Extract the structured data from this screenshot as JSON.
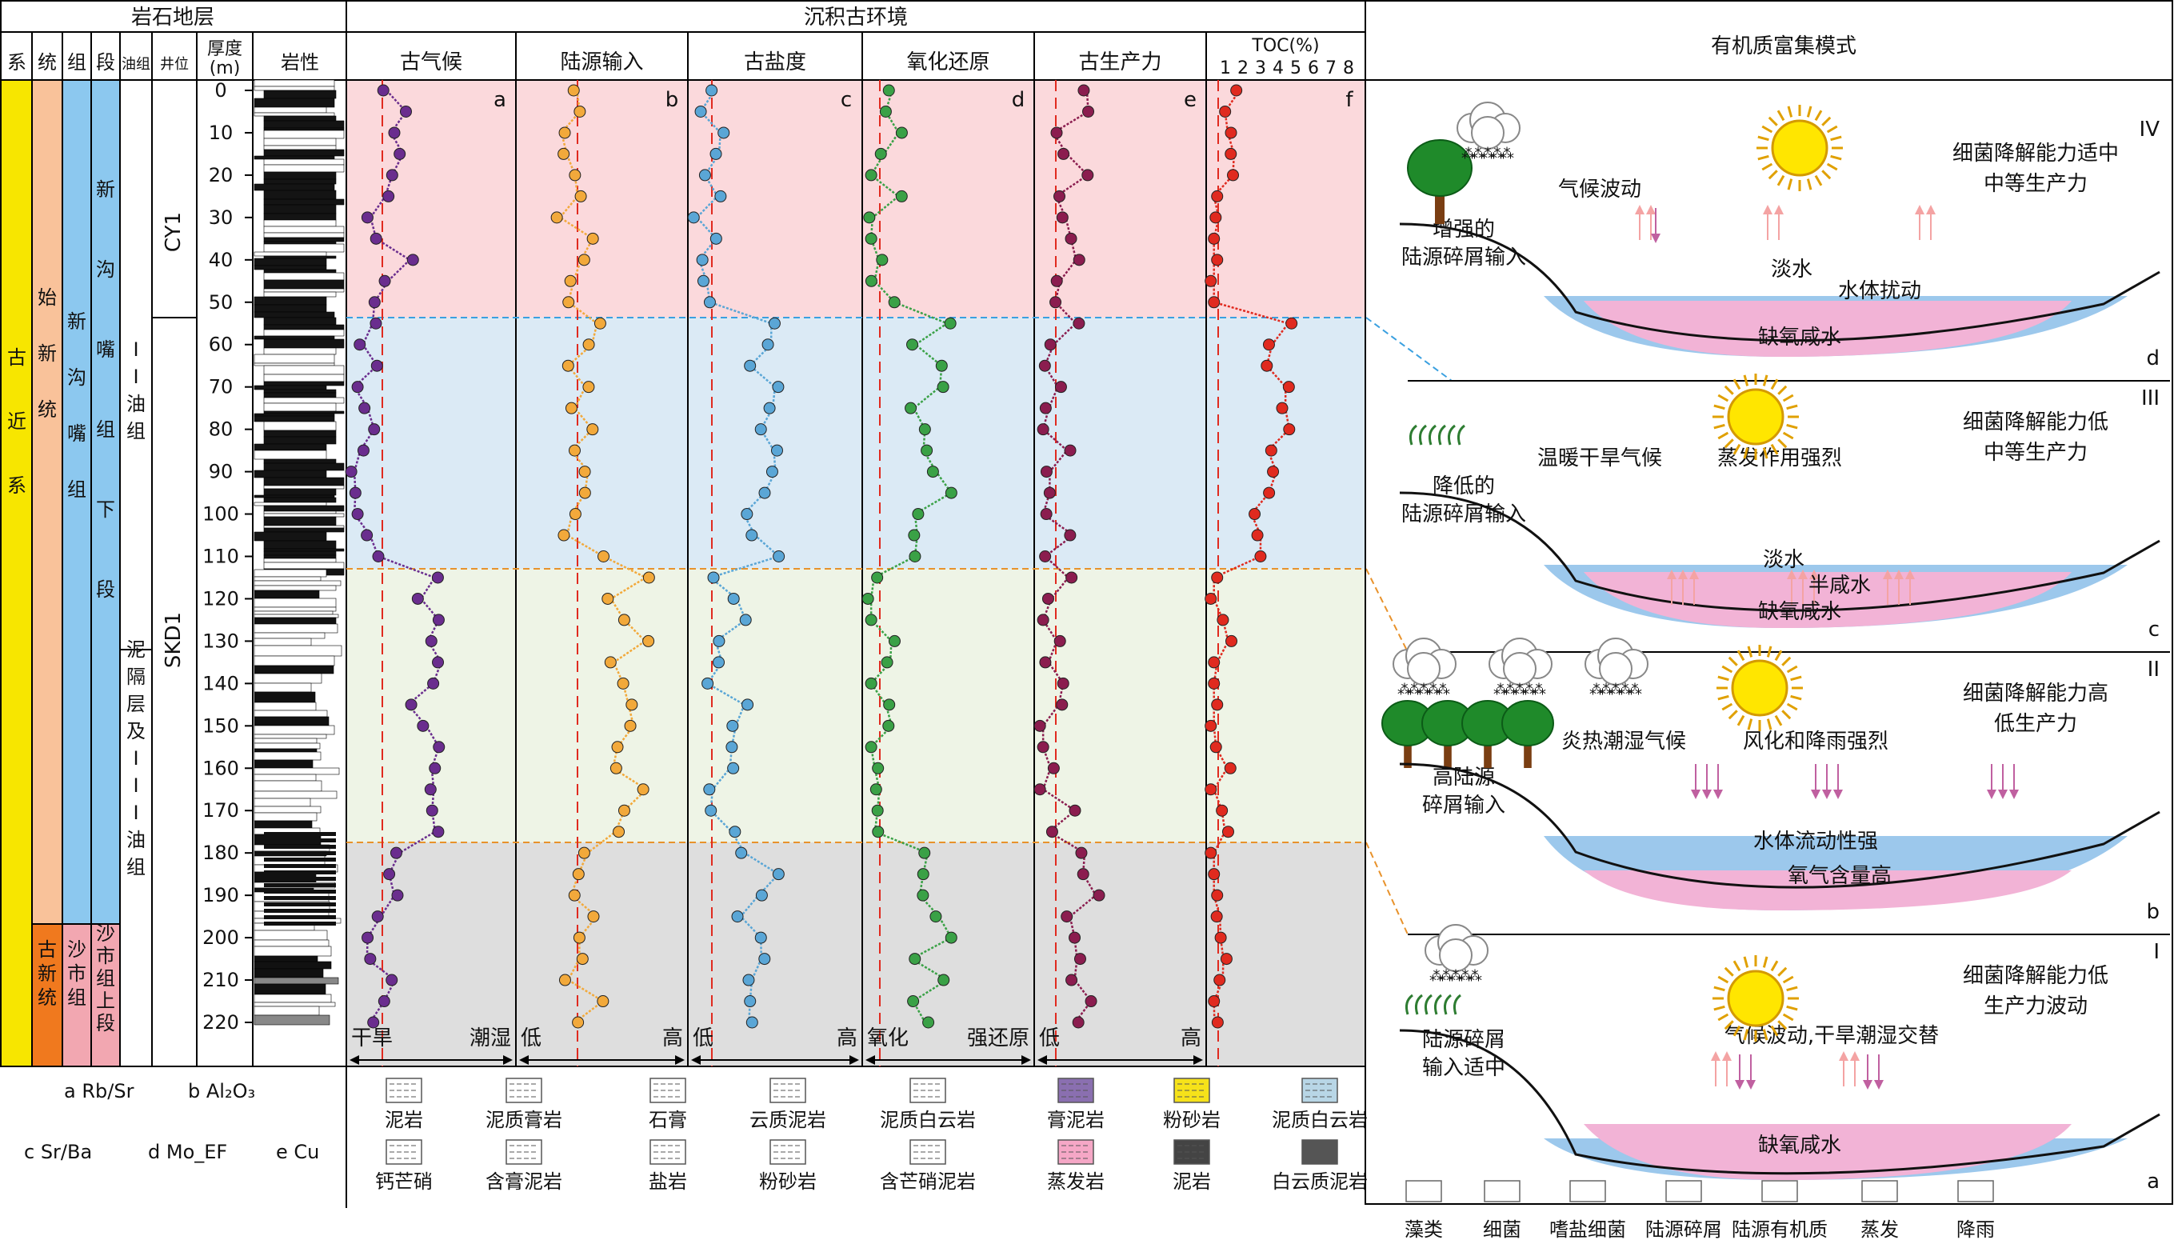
{
  "headers": {
    "strata": "岩石地层",
    "env": "沉积古环境",
    "model": "有机质富集模式",
    "cols": [
      "系",
      "统",
      "组",
      "段",
      "油组",
      "井位",
      "厚度\n(m)",
      "岩性"
    ],
    "panels": [
      "古气候",
      "陆源输入",
      "古盐度",
      "氧化还原",
      "古生产力",
      "TOC(%)"
    ],
    "toc_ticks": [
      "1",
      "2",
      "3",
      "4",
      "5",
      "6",
      "7",
      "8"
    ],
    "panel_letters": [
      "a",
      "b",
      "c",
      "d",
      "e",
      "f"
    ]
  },
  "strata": {
    "system": "古近系",
    "series_upper": "始新统",
    "series_lower": "古新统",
    "formation_upper": "新沟嘴组",
    "formation_lower": "沙市组",
    "member_upper": "新沟嘴组下段",
    "member_lower": "沙市组上段",
    "oil_group_upper": "II油组",
    "oil_group_lower": "泥隔层及III油组",
    "well_upper": "CY1",
    "well_lower": "SKD1"
  },
  "depth_ticks": [
    0,
    10,
    20,
    30,
    40,
    50,
    60,
    70,
    80,
    90,
    100,
    110,
    120,
    130,
    140,
    150,
    160,
    170,
    180,
    190,
    200,
    210,
    220
  ],
  "axis_ends": [
    [
      "干旱",
      "潮湿"
    ],
    [
      "低",
      "高"
    ],
    [
      "低",
      "高"
    ],
    [
      "氧化",
      "强还原"
    ],
    [
      "低",
      "高"
    ]
  ],
  "legend_left": [
    "a Rb/Sr",
    "b Al₂O₃",
    "c Sr/Ba",
    "d Mo_EF",
    "e Cu"
  ],
  "lithology_legend": [
    [
      "泥岩",
      "泥质膏岩",
      "石膏",
      "云质泥岩",
      "泥质白云岩",
      "膏泥岩",
      "粉砂岩",
      "泥质白云岩"
    ],
    [
      "钙芒硝",
      "含膏泥岩",
      "盐岩",
      "粉砂岩",
      "含芒硝泥岩",
      "蒸发岩",
      "泥岩",
      "白云质泥岩"
    ]
  ],
  "model_legend": [
    "藻类",
    "细菌",
    "嗜盐细菌",
    "陆源碎屑",
    "陆源有机质",
    "蒸发",
    "降雨"
  ],
  "stages": [
    {
      "roman": "IV",
      "letter": "d",
      "climate": "气候波动",
      "input": "增强的\n陆源碎屑输入",
      "right": "细菌降解能力适中\n中等生产力",
      "water": [
        "淡水",
        "水体扰动",
        "缺氧咸水"
      ]
    },
    {
      "roman": "III",
      "letter": "c",
      "climate": "温暖干旱气候",
      "mid": "蒸发作用强烈",
      "input": "降低的\n陆源碎屑输入",
      "right": "细菌降解能力低\n中等生产力",
      "water": [
        "淡水",
        "半咸水",
        "缺氧咸水"
      ]
    },
    {
      "roman": "II",
      "letter": "b",
      "climate": "炎热潮湿气候",
      "mid": "风化和降雨强烈",
      "input": "高陆源\n碎屑输入",
      "right": "细菌降解能力高\n低生产力",
      "water": [
        "水体流动性强",
        "氧气含量高"
      ]
    },
    {
      "roman": "I",
      "letter": "a",
      "climate": "气候波动,干旱潮湿交替",
      "input": "陆源碎屑\n输入适中",
      "right": "细菌降解能力低\n生产力波动",
      "water": [
        "缺氧咸水"
      ]
    }
  ],
  "colors": {
    "zone4": "#fbd9dc",
    "zone3": "#dbeaf5",
    "zone2": "#eef4e6",
    "zone1": "#dedede",
    "purple": "#6a2d8e",
    "orange": "#f2a93b",
    "blue": "#5aa6d6",
    "green": "#3aa146",
    "maroon": "#8b1d4f",
    "red": "#e02a1f"
  }
}
